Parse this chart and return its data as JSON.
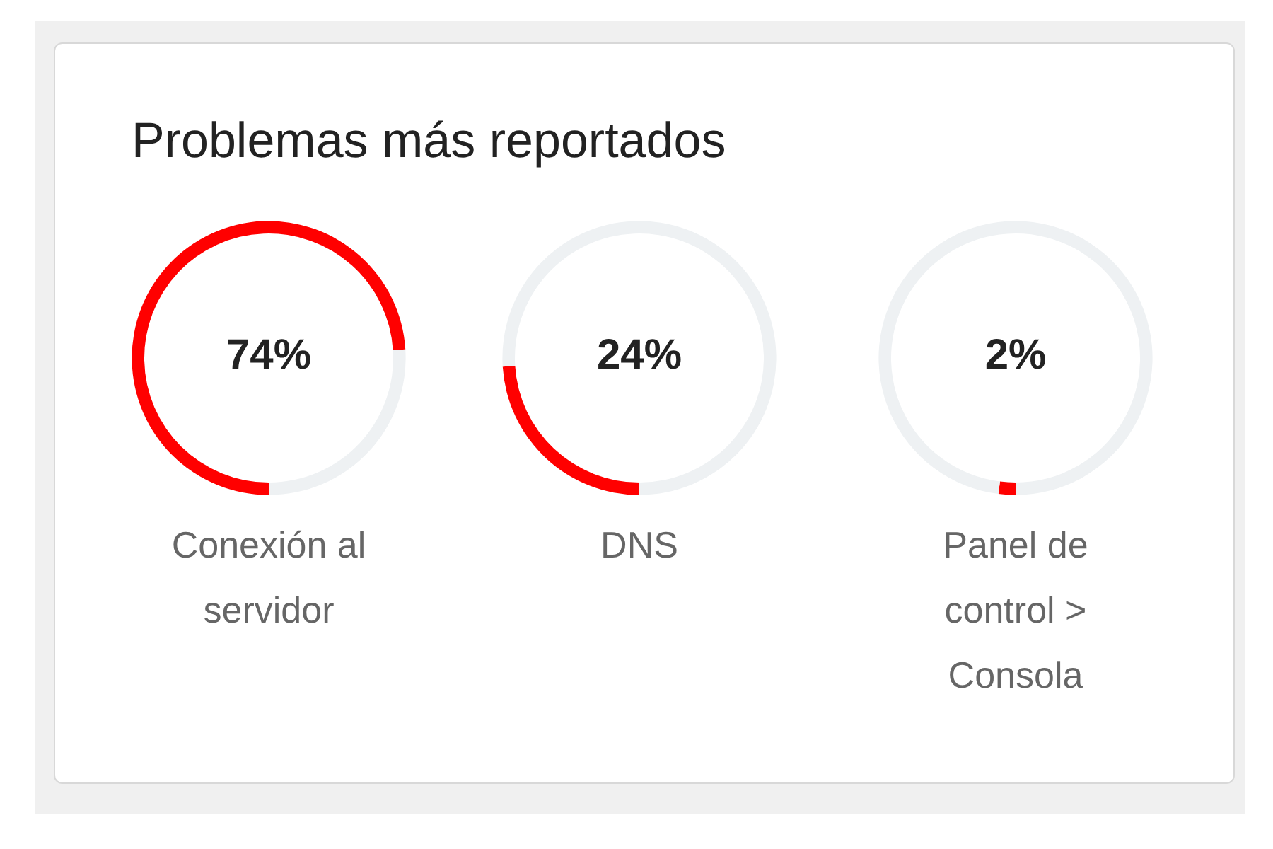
{
  "chart_data": [
    {
      "type": "donut",
      "title": "Problemas más reportados",
      "categories": [
        "Conexión al servidor",
        null
      ],
      "values": [
        74,
        26
      ],
      "colors": [
        "#ff0000",
        "#eef1f3"
      ],
      "annotations": [
        "74%"
      ],
      "legend": false
    },
    {
      "type": "donut",
      "categories": [
        "DNS",
        null
      ],
      "values": [
        24,
        76
      ],
      "colors": [
        "#ff0000",
        "#eef1f3"
      ],
      "annotations": [
        "24%"
      ],
      "legend": false
    },
    {
      "type": "donut",
      "categories": [
        "Panel de control > Consola",
        null
      ],
      "values": [
        2,
        98
      ],
      "colors": [
        "#ff0000",
        "#eef1f3"
      ],
      "annotations": [
        "2%"
      ],
      "legend": false
    }
  ]
}
